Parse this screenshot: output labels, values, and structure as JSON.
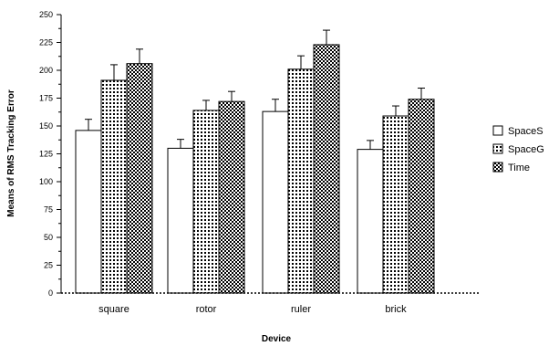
{
  "chart_data": {
    "type": "bar",
    "categories": [
      "square",
      "rotor",
      "ruler",
      "brick"
    ],
    "series": [
      {
        "name": "SpaceS",
        "values": [
          146,
          130,
          163,
          129
        ],
        "errors": [
          10,
          8,
          11,
          8
        ],
        "pattern": "plain",
        "color": "#ffffff"
      },
      {
        "name": "SpaceG",
        "values": [
          191,
          164,
          201,
          159
        ],
        "errors": [
          14,
          9,
          12,
          9
        ],
        "pattern": "dots",
        "color": "#000000"
      },
      {
        "name": "Time",
        "values": [
          206,
          172,
          223,
          174
        ],
        "errors": [
          13,
          9,
          13,
          10
        ],
        "pattern": "checker",
        "color": "#000000"
      }
    ],
    "xlabel": "Device",
    "ylabel": "Means of RMS Tracking Error",
    "ylim": [
      0,
      250
    ],
    "yticks": [
      0,
      25,
      50,
      75,
      100,
      125,
      150,
      175,
      200,
      225,
      250
    ],
    "legend_position": "right",
    "grid": false
  }
}
